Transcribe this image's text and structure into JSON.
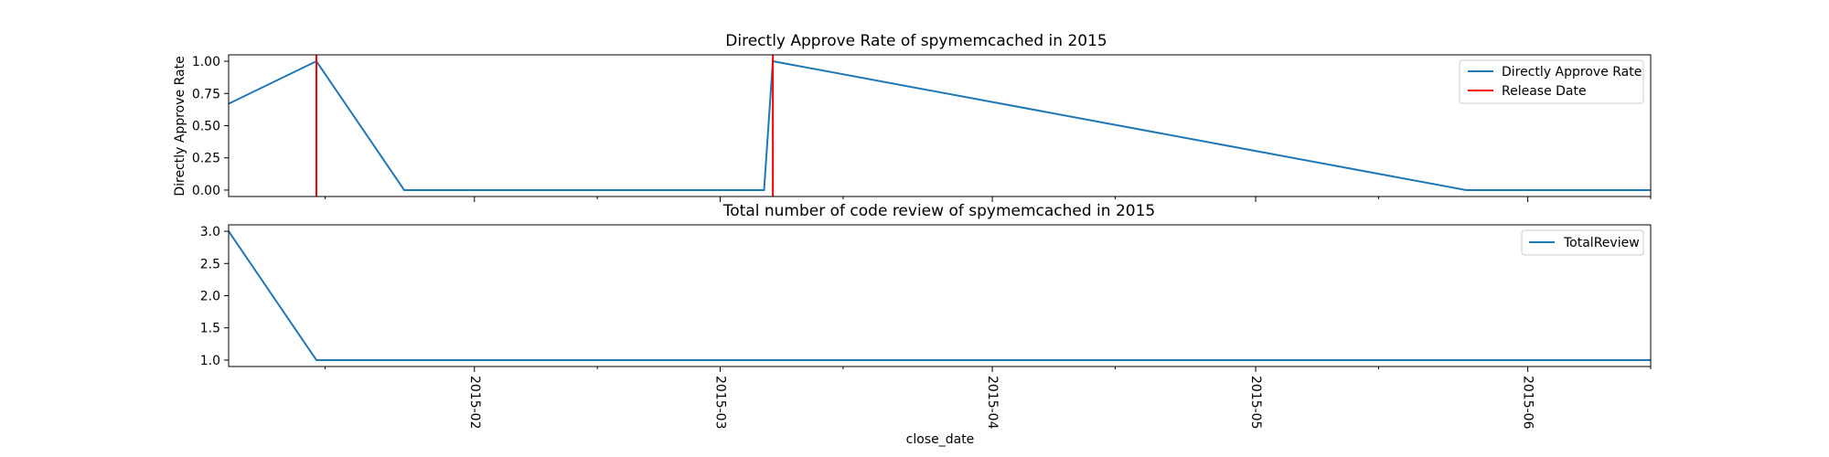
{
  "colors": {
    "series": "#1f77b4",
    "release": "#ff0000",
    "axis": "#000000",
    "legend_border": "#cccccc"
  },
  "xaxis": {
    "label": "close_date",
    "ticks": [
      {
        "date": "2015-02-01",
        "label": "2015-02"
      },
      {
        "date": "2015-03-01",
        "label": "2015-03"
      },
      {
        "date": "2015-04-01",
        "label": "2015-04"
      },
      {
        "date": "2015-05-01",
        "label": "2015-05"
      },
      {
        "date": "2015-06-01",
        "label": "2015-06"
      }
    ],
    "minor_ticks": [
      "2015-01-15",
      "2015-02-15",
      "2015-03-15",
      "2015-04-15",
      "2015-05-15",
      "2015-06-15"
    ]
  },
  "chart_data": [
    {
      "type": "line",
      "title": "Directly Approve Rate of spymemcached in 2015",
      "xlabel": "",
      "ylabel": "Directly Approve Rate",
      "xlim": [
        "2015-01-04",
        "2015-06-15"
      ],
      "ylim": [
        -0.05,
        1.05
      ],
      "yticks": [
        0.0,
        0.25,
        0.5,
        0.75,
        1.0
      ],
      "ytick_labels": [
        "0.00",
        "0.25",
        "0.50",
        "0.75",
        "1.00"
      ],
      "grid": false,
      "legend_position": "top-right",
      "series": [
        {
          "name": "Directly Approve Rate",
          "x": [
            "2015-01-04",
            "2015-01-14",
            "2015-01-24",
            "2015-03-06",
            "2015-03-07",
            "2015-05-25",
            "2015-06-15"
          ],
          "y": [
            0.67,
            1.0,
            0.0,
            0.0,
            1.0,
            0.0,
            0.0
          ]
        }
      ],
      "release_dates": {
        "name": "Release Date",
        "dates": [
          "2015-01-14",
          "2015-03-07"
        ]
      }
    },
    {
      "type": "line",
      "title": "Total number of code review of spymemcached in 2015",
      "xlabel": "close_date",
      "ylabel": "",
      "xlim": [
        "2015-01-04",
        "2015-06-15"
      ],
      "ylim": [
        0.9,
        3.1
      ],
      "yticks": [
        1.0,
        1.5,
        2.0,
        2.5,
        3.0
      ],
      "ytick_labels": [
        "1.0",
        "1.5",
        "2.0",
        "2.5",
        "3.0"
      ],
      "grid": false,
      "legend_position": "top-right",
      "series": [
        {
          "name": "TotalReview",
          "x": [
            "2015-01-04",
            "2015-01-14",
            "2015-06-15"
          ],
          "y": [
            3.0,
            1.0,
            1.0
          ]
        }
      ]
    }
  ]
}
